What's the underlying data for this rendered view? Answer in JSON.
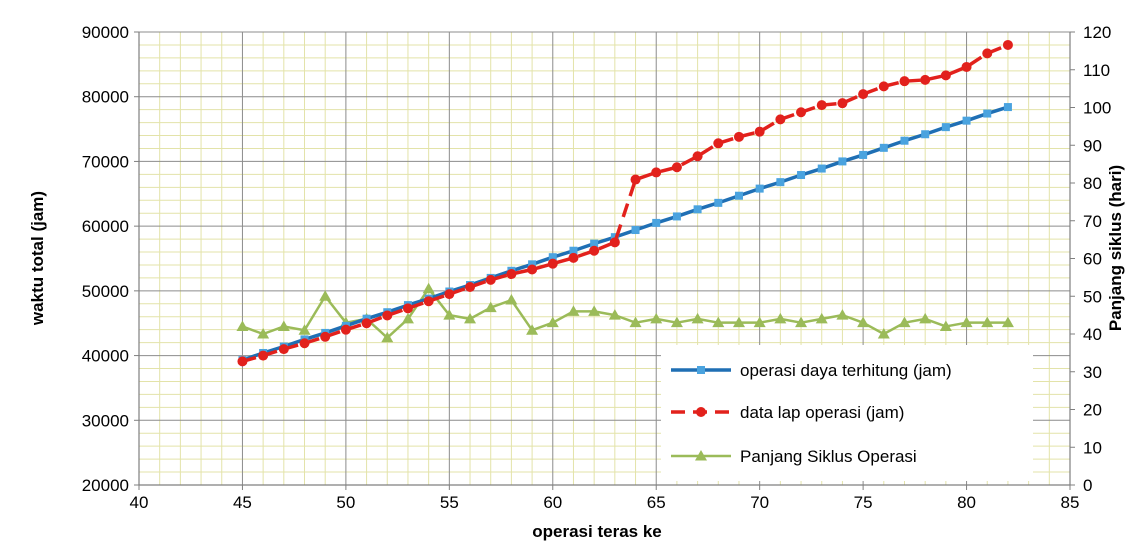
{
  "chart_data": {
    "type": "line",
    "xlabel": "operasi teras ke",
    "ylabel": "waktu total (jam)",
    "y2label": "Panjang siklus (hari)",
    "xlim": [
      40,
      85
    ],
    "ylim": [
      20000,
      90000
    ],
    "y2lim": [
      0,
      120
    ],
    "x_ticks": [
      40,
      45,
      50,
      55,
      60,
      65,
      70,
      75,
      80,
      85
    ],
    "y_ticks": [
      20000,
      30000,
      40000,
      50000,
      60000,
      70000,
      80000,
      90000
    ],
    "y2_ticks": [
      0,
      10,
      20,
      30,
      40,
      50,
      60,
      70,
      80,
      90,
      100,
      110,
      120
    ],
    "grid": true,
    "legend_position": "bottom-right",
    "series": [
      {
        "name": "operasi daya terhitung (jam)",
        "axis": "left",
        "color": "#1f6fb4",
        "marker_color": "#4aa3df",
        "marker": "square",
        "line_style": "solid",
        "x": [
          45,
          46,
          47,
          48,
          49,
          50,
          51,
          52,
          53,
          54,
          55,
          56,
          57,
          58,
          59,
          60,
          61,
          62,
          63,
          64,
          65,
          66,
          67,
          68,
          69,
          70,
          71,
          72,
          73,
          74,
          75,
          76,
          77,
          78,
          79,
          80,
          81,
          82
        ],
        "values": [
          39300,
          40400,
          41400,
          42500,
          43500,
          44600,
          45700,
          46700,
          47800,
          48800,
          49900,
          50900,
          52000,
          53100,
          54100,
          55200,
          56200,
          57300,
          58300,
          59400,
          60500,
          61500,
          62600,
          63600,
          64700,
          65800,
          66800,
          67900,
          68900,
          70000,
          71000,
          72100,
          73200,
          74200,
          75300,
          76300,
          77400,
          78400
        ]
      },
      {
        "name": "data lap operasi (jam)",
        "axis": "left",
        "color": "#e2211c",
        "marker_color": "#e2211c",
        "marker": "circle",
        "line_style": "dashed",
        "x": [
          45,
          46,
          47,
          48,
          49,
          50,
          51,
          52,
          53,
          54,
          55,
          56,
          57,
          58,
          59,
          60,
          61,
          62,
          63,
          64,
          65,
          66,
          67,
          68,
          69,
          70,
          71,
          72,
          73,
          74,
          75,
          76,
          77,
          78,
          79,
          80,
          81,
          82
        ],
        "values": [
          39100,
          40000,
          41000,
          41900,
          42900,
          44000,
          45000,
          46200,
          47300,
          48400,
          49500,
          50600,
          51700,
          52600,
          53300,
          54200,
          55100,
          56200,
          57500,
          67200,
          68300,
          69100,
          70800,
          72800,
          73800,
          74600,
          76500,
          77600,
          78700,
          79000,
          80400,
          81600,
          82400,
          82600,
          83300,
          84600,
          86700,
          88000
        ]
      },
      {
        "name": "Panjang Siklus Operasi",
        "axis": "right",
        "color": "#9bbb59",
        "marker_color": "#9bbb59",
        "marker": "triangle",
        "line_style": "solid",
        "x": [
          45,
          46,
          47,
          48,
          49,
          50,
          51,
          52,
          53,
          54,
          55,
          56,
          57,
          58,
          59,
          60,
          61,
          62,
          63,
          64,
          65,
          66,
          67,
          68,
          69,
          70,
          71,
          72,
          73,
          74,
          75,
          76,
          77,
          78,
          79,
          80,
          81,
          82
        ],
        "values": [
          42,
          40,
          42,
          41,
          50,
          43,
          44,
          39,
          44,
          52,
          45,
          44,
          47,
          49,
          41,
          43,
          46,
          46,
          45,
          43,
          44,
          43,
          44,
          43,
          43,
          43,
          44,
          43,
          44,
          45,
          43,
          40,
          43,
          44,
          42,
          43,
          43,
          43
        ]
      }
    ]
  }
}
